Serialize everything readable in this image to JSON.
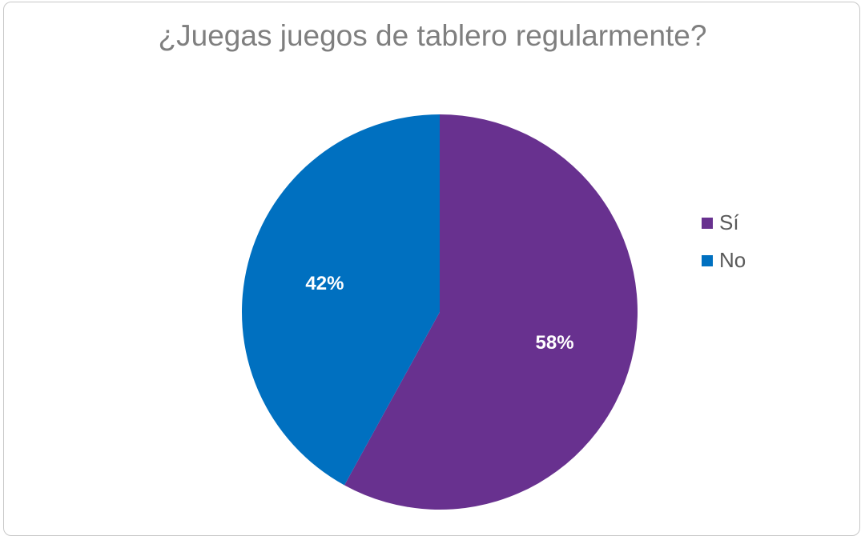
{
  "chart_data": {
    "type": "pie",
    "title": "¿Juegas juegos de tablero regularmente?",
    "slices": [
      {
        "label": "Sí",
        "value": 58,
        "display": "58%",
        "color": "#68318f"
      },
      {
        "label": "No",
        "value": 42,
        "display": "42%",
        "color": "#0070c0"
      }
    ],
    "legend_position": "right"
  }
}
